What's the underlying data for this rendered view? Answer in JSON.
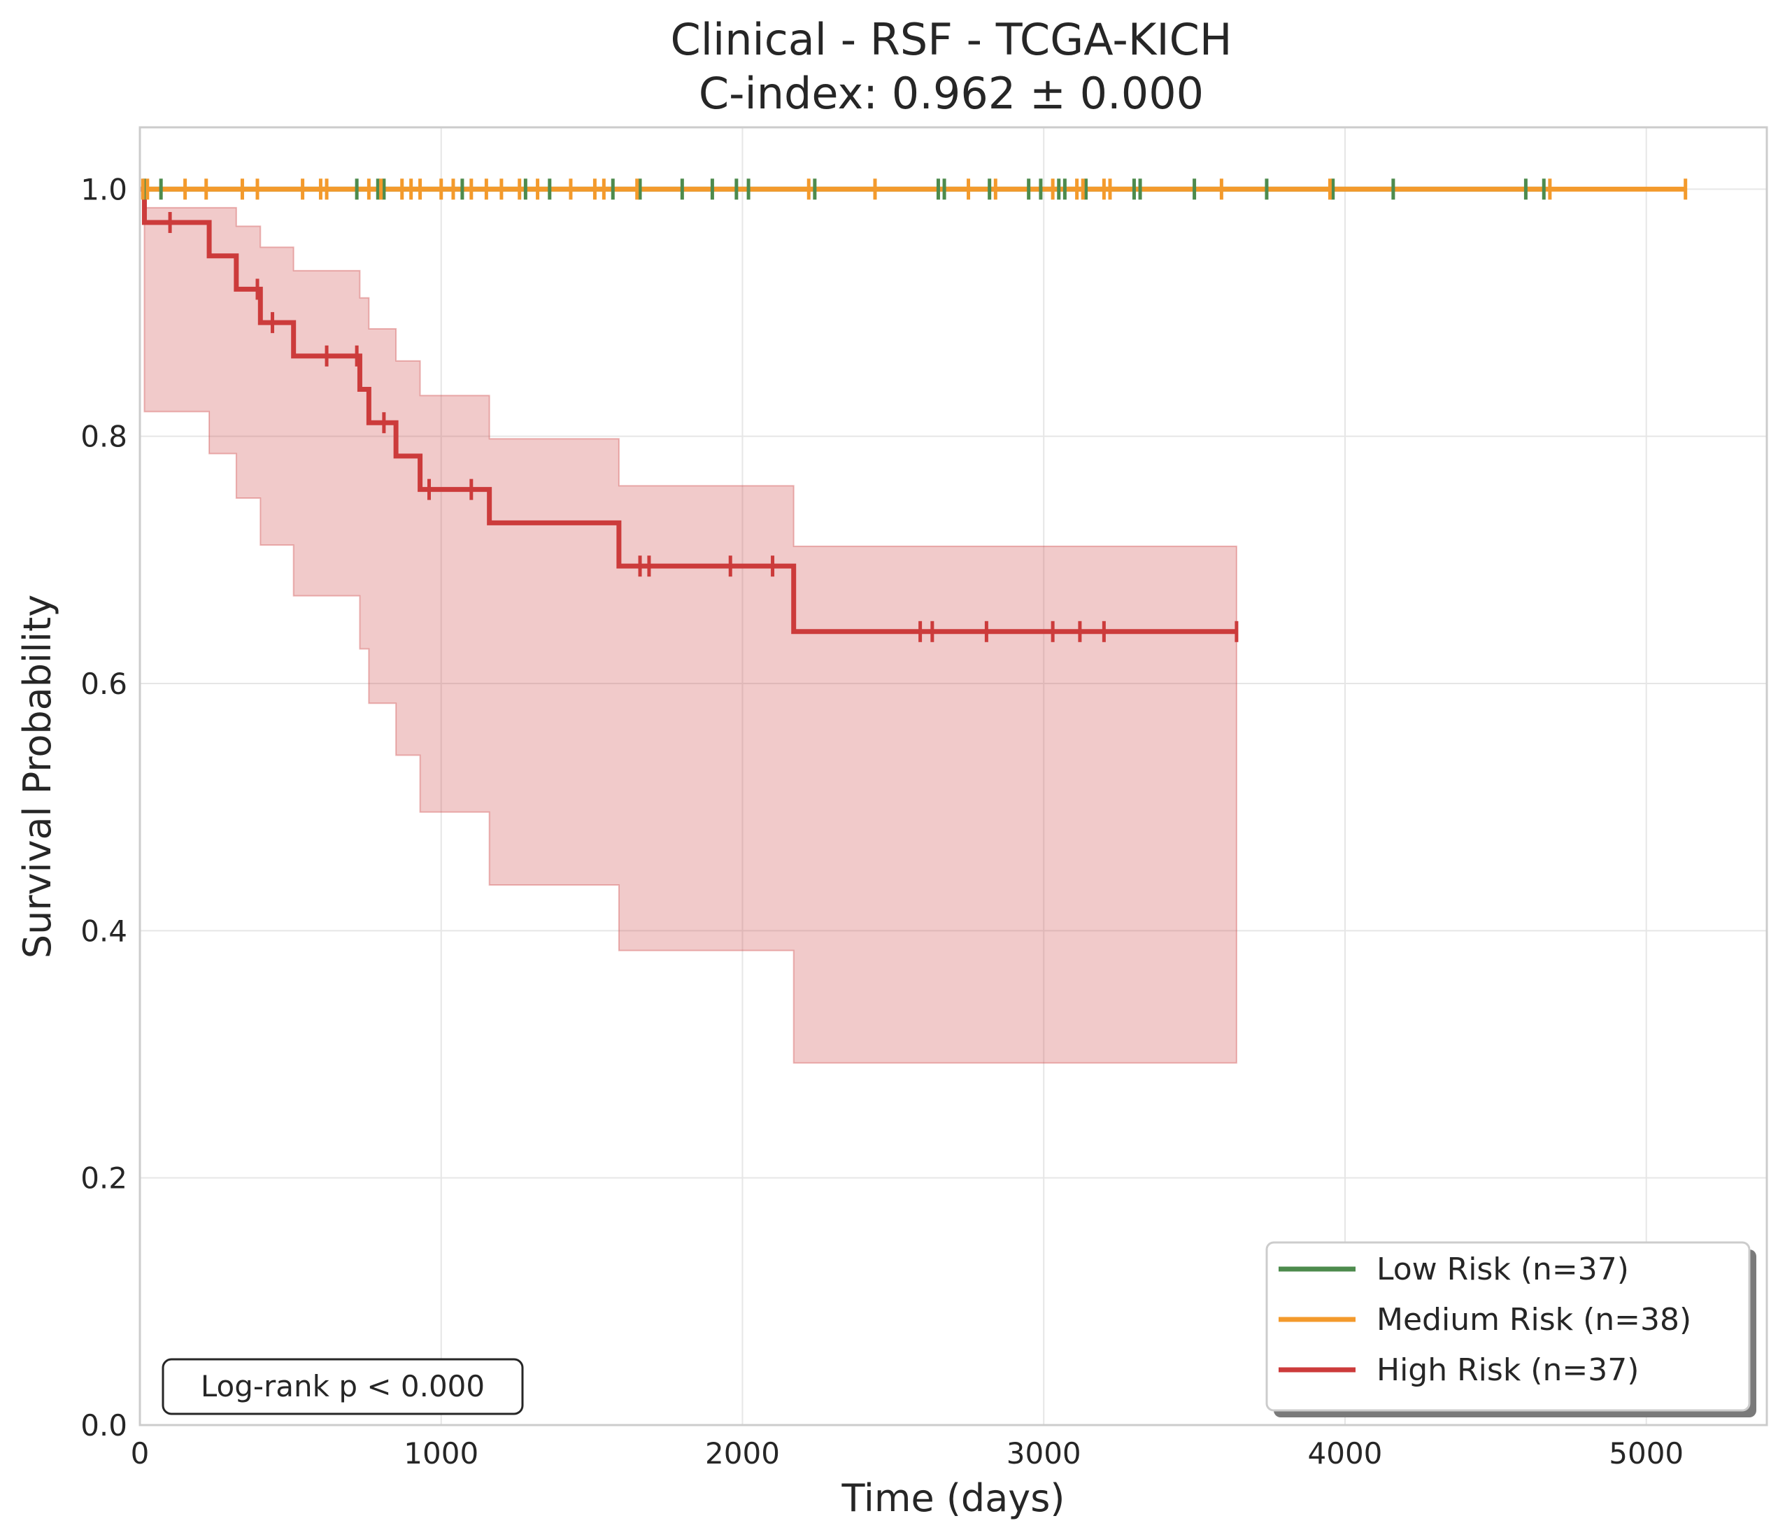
{
  "chart_data": {
    "type": "line",
    "subtype": "kaplan-meier survival curves with confidence bands and censor marks",
    "title": "Clinical - RSF - TCGA-KICH",
    "subtitle": "C-index: 0.962 ± 0.000",
    "xlabel": "Time (days)",
    "ylabel": "Survival Probability",
    "xlim": [
      0,
      5400
    ],
    "ylim": [
      0,
      1.05
    ],
    "xticks": [
      0,
      1000,
      2000,
      3000,
      4000,
      5000
    ],
    "xtick_labels": [
      "0",
      "1000",
      "2000",
      "3000",
      "4000",
      "5000"
    ],
    "yticks": [
      0,
      0.2,
      0.4,
      0.6,
      0.8,
      1.0
    ],
    "ytick_labels": [
      "0.0",
      "0.2",
      "0.4",
      "0.6",
      "0.8",
      "1.0"
    ],
    "grid": true,
    "legend_position": "lower-right",
    "annotation": "Log-rank p < 0.000",
    "series": [
      {
        "name": "Low Risk (n=37)",
        "color": "#4d8b4d",
        "steps": [
          [
            0,
            1.0
          ],
          [
            4660,
            1.0
          ]
        ],
        "censor_times": [
          15,
          70,
          720,
          790,
          810,
          1070,
          1280,
          1360,
          1570,
          1660,
          1800,
          1900,
          1980,
          2020,
          2240,
          2650,
          2670,
          2820,
          2950,
          2990,
          3050,
          3070,
          3140,
          3300,
          3320,
          3500,
          3740,
          3960,
          4160,
          4600,
          4660
        ]
      },
      {
        "name": "Medium Risk (n=38)",
        "color": "#f39a2c",
        "steps": [
          [
            0,
            1.0
          ],
          [
            5130,
            1.0
          ]
        ],
        "censor_times": [
          10,
          25,
          150,
          220,
          340,
          390,
          540,
          600,
          620,
          760,
          800,
          870,
          900,
          930,
          1000,
          1040,
          1100,
          1150,
          1200,
          1260,
          1320,
          1430,
          1510,
          1540,
          1650,
          2220,
          2440,
          2750,
          2840,
          3030,
          3110,
          3130,
          3200,
          3220,
          3590,
          3950,
          4680,
          5130
        ]
      },
      {
        "name": "High Risk (n=37)",
        "color": "#cc3b3b",
        "steps": [
          [
            0,
            1.0
          ],
          [
            15,
            0.973
          ],
          [
            230,
            0.946
          ],
          [
            320,
            0.919
          ],
          [
            400,
            0.892
          ],
          [
            510,
            0.865
          ],
          [
            730,
            0.838
          ],
          [
            760,
            0.811
          ],
          [
            850,
            0.784
          ],
          [
            930,
            0.757
          ],
          [
            1160,
            0.73
          ],
          [
            1590,
            0.695
          ],
          [
            2170,
            0.642
          ],
          [
            3640,
            0.642
          ]
        ],
        "ci_lower": [
          [
            0,
            1.0
          ],
          [
            15,
            0.82
          ],
          [
            230,
            0.786
          ],
          [
            320,
            0.75
          ],
          [
            400,
            0.712
          ],
          [
            510,
            0.671
          ],
          [
            730,
            0.628
          ],
          [
            760,
            0.584
          ],
          [
            850,
            0.542
          ],
          [
            930,
            0.496
          ],
          [
            1160,
            0.437
          ],
          [
            1590,
            0.384
          ],
          [
            2170,
            0.293
          ],
          [
            3640,
            0.293
          ]
        ],
        "ci_upper": [
          [
            0,
            1.0
          ],
          [
            15,
            0.985
          ],
          [
            230,
            0.985
          ],
          [
            320,
            0.97
          ],
          [
            400,
            0.953
          ],
          [
            510,
            0.934
          ],
          [
            730,
            0.912
          ],
          [
            760,
            0.887
          ],
          [
            850,
            0.861
          ],
          [
            930,
            0.833
          ],
          [
            1160,
            0.798
          ],
          [
            1590,
            0.76
          ],
          [
            2170,
            0.711
          ],
          [
            3640,
            0.711
          ]
        ],
        "censor_times": [
          100,
          390,
          440,
          620,
          720,
          810,
          960,
          1100,
          1660,
          1690,
          1960,
          2100,
          2590,
          2630,
          2810,
          3030,
          3120,
          3200,
          3640
        ]
      }
    ]
  }
}
